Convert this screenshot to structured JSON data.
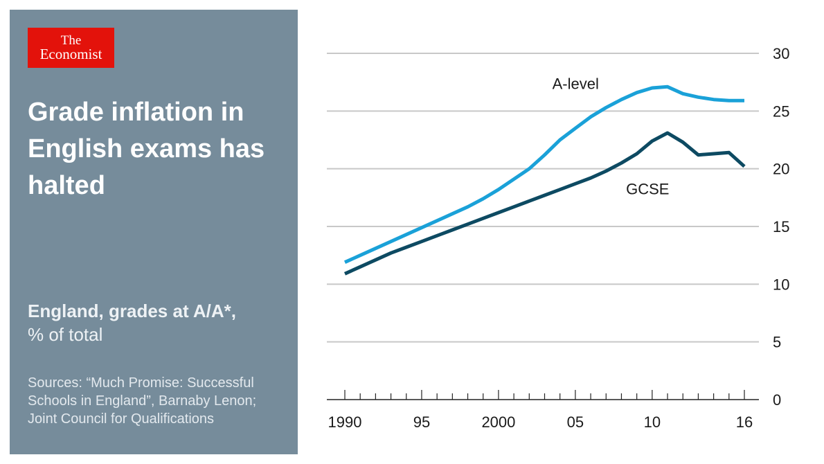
{
  "logo": {
    "line1": "The",
    "line2": "Economist"
  },
  "headline": "Grade inflation in English exams has halted",
  "subtitle": {
    "bold": "England, grades at A/A*,",
    "regular": "% of total"
  },
  "sources": "Sources: “Much Promise: Successful Schools in England”, Barnaby Lenon; Joint Council for Qualifications",
  "colors": {
    "panel": "#768c9b",
    "logo_red": "#e3120b",
    "a_level": "#1aa1d8",
    "gcse": "#0d4a62",
    "grid": "#c8c8c8"
  },
  "chart_data": {
    "type": "line",
    "title": "Grade inflation in English exams has halted",
    "ylabel": "England, grades at A/A*, % of total",
    "xlabel": "",
    "ylim": [
      0,
      30
    ],
    "yticks": [
      0,
      5,
      10,
      15,
      20,
      25,
      30
    ],
    "xlim": [
      1990,
      2016
    ],
    "xtick_labels": [
      {
        "year": 1990,
        "label": "1990"
      },
      {
        "year": 1995,
        "label": "95"
      },
      {
        "year": 2000,
        "label": "2000"
      },
      {
        "year": 2005,
        "label": "05"
      },
      {
        "year": 2010,
        "label": "10"
      },
      {
        "year": 2016,
        "label": "16"
      }
    ],
    "x": [
      1990,
      1991,
      1992,
      1993,
      1994,
      1995,
      1996,
      1997,
      1998,
      1999,
      2000,
      2001,
      2002,
      2003,
      2004,
      2005,
      2006,
      2007,
      2008,
      2009,
      2010,
      2011,
      2012,
      2013,
      2014,
      2015,
      2016
    ],
    "series": [
      {
        "name": "A-level",
        "color": "#1aa1d8",
        "values": [
          11.9,
          12.5,
          13.1,
          13.7,
          14.3,
          14.9,
          15.5,
          16.1,
          16.7,
          17.4,
          18.2,
          19.1,
          20.0,
          21.2,
          22.5,
          23.5,
          24.5,
          25.3,
          26.0,
          26.6,
          27.0,
          27.1,
          26.5,
          26.2,
          26.0,
          25.9,
          25.9
        ]
      },
      {
        "name": "GCSE",
        "color": "#0d4a62",
        "values": [
          10.9,
          11.5,
          12.1,
          12.7,
          13.2,
          13.7,
          14.2,
          14.7,
          15.2,
          15.7,
          16.2,
          16.7,
          17.2,
          17.7,
          18.2,
          18.7,
          19.2,
          19.8,
          20.5,
          21.3,
          22.4,
          23.1,
          22.3,
          21.2,
          21.3,
          21.4,
          20.2
        ]
      }
    ]
  }
}
